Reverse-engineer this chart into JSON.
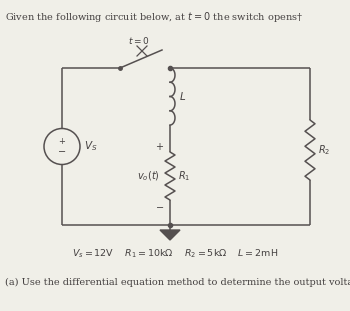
{
  "title_text": "Given the following circuit below, at $t = 0$ the switch opens†",
  "bottom_text": "(a) Use the differential equation method to determine the output voltage",
  "params_text": "$V_s = 12\\mathrm{V}$    $R_1 = 10\\mathrm{k}\\Omega$    $R_2 = 5\\mathrm{k}\\Omega$    $L = 2\\mathrm{mH}$",
  "bg_color": "#f0efe8",
  "line_color": "#555050",
  "text_color": "#444040",
  "figsize": [
    3.5,
    3.11
  ],
  "dpi": 100
}
